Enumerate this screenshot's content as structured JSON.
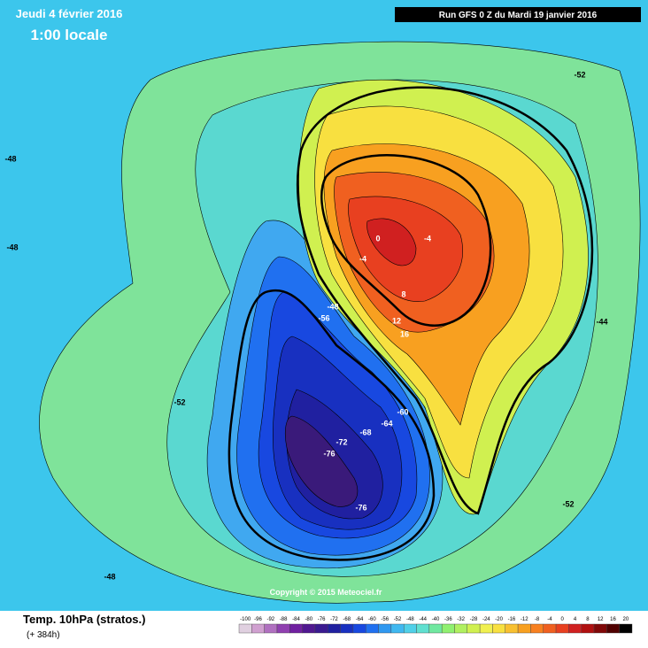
{
  "header": {
    "date": "Jeudi 4 février 2016",
    "time": "1:00 locale",
    "run": "Run GFS 0 Z du Mardi 19 janvier 2016"
  },
  "map": {
    "contour_labels": [
      "-52",
      "-48",
      "-48",
      "-52",
      "-56",
      "-48",
      "-60",
      "-64",
      "-68",
      "-72",
      "-76",
      "-76",
      "0",
      "-4",
      "-4",
      "8",
      "12",
      "16",
      "-44",
      "-52",
      "-48"
    ],
    "copyright": "Copyright © 2015 Meteociel.fr"
  },
  "footer": {
    "title": "Temp. 10hPa (stratos.)",
    "lead": "(+ 384h)"
  },
  "legend": {
    "labels": [
      "-100",
      "-96",
      "-92",
      "-88",
      "-84",
      "-80",
      "-76",
      "-72",
      "-68",
      "-64",
      "-60",
      "-56",
      "-52",
      "-48",
      "-44",
      "-40",
      "-36",
      "-32",
      "-28",
      "-24",
      "-20",
      "-16",
      "-12",
      "-8",
      "-4",
      "0",
      "4",
      "8",
      "12",
      "16",
      "20"
    ],
    "colors": [
      "#e0d0e0",
      "#d0a0d0",
      "#b070c0",
      "#9040b0",
      "#7020a0",
      "#501890",
      "#3a1a90",
      "#2020a0",
      "#1830c0",
      "#1848e0",
      "#2070f0",
      "#3098f0",
      "#40b8f0",
      "#50d0e8",
      "#60e0d0",
      "#70e8a0",
      "#90f070",
      "#b0f060",
      "#d0f050",
      "#f0f050",
      "#f8e040",
      "#f8c030",
      "#f8a020",
      "#f88020",
      "#f06020",
      "#e84020",
      "#d02020",
      "#b01010",
      "#800808",
      "#500000",
      "#000000"
    ]
  }
}
